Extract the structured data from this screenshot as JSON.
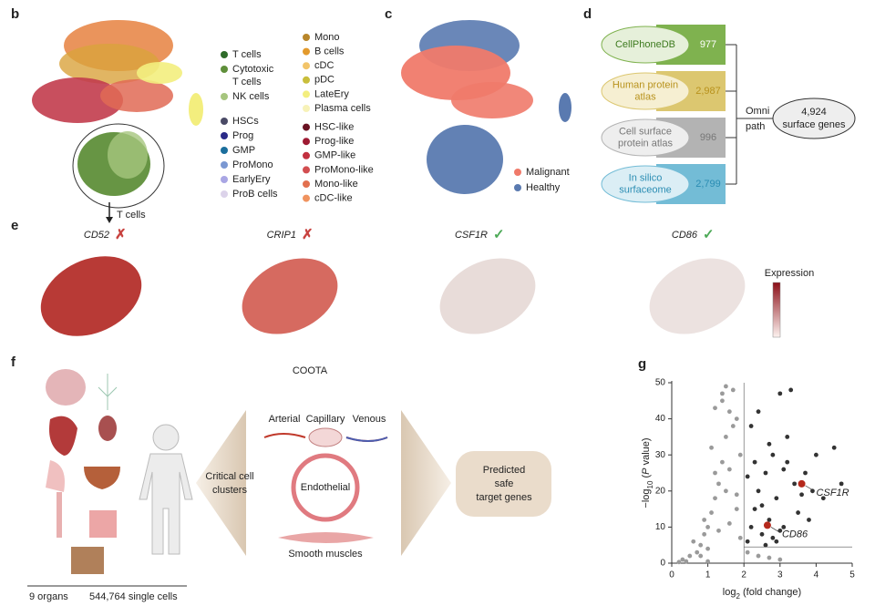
{
  "panel_labels": [
    "b",
    "c",
    "d",
    "e",
    "f",
    "g"
  ],
  "panel_b": {
    "arrow_label": "T cells",
    "legend_left": [
      {
        "label": [
          "T cells"
        ],
        "color": "#2f6b2a"
      },
      {
        "label": [
          "Cytotoxic",
          "T cells"
        ],
        "color": "#5f8f3a"
      },
      {
        "label": [
          "NK cells"
        ],
        "color": "#a6c57e"
      },
      {
        "label": [
          "HSCs"
        ],
        "color": "#4a4a66"
      },
      {
        "label": [
          "Prog"
        ],
        "color": "#2a2a88"
      },
      {
        "label": [
          "GMP"
        ],
        "color": "#1b6e9c"
      },
      {
        "label": [
          "ProMono"
        ],
        "color": "#7b98d2"
      },
      {
        "label": [
          "EarlyEry"
        ],
        "color": "#a9a6e4"
      },
      {
        "label": [
          "ProB cells"
        ],
        "color": "#dcd3ea"
      }
    ],
    "legend_right": [
      {
        "label": [
          "Mono"
        ],
        "color": "#b8862a"
      },
      {
        "label": [
          "B cells"
        ],
        "color": "#e39a2c"
      },
      {
        "label": [
          "cDC"
        ],
        "color": "#f2c469"
      },
      {
        "label": [
          "pDC"
        ],
        "color": "#c9be3c"
      },
      {
        "label": [
          "LateEry"
        ],
        "color": "#f3ee7e"
      },
      {
        "label": [
          "Plasma cells"
        ],
        "color": "#f7f2b8"
      },
      {
        "label": [
          "HSC-like"
        ],
        "color": "#6a1222"
      },
      {
        "label": [
          "Prog-like"
        ],
        "color": "#9e1a32"
      },
      {
        "label": [
          "GMP-like"
        ],
        "color": "#c2303f"
      },
      {
        "label": [
          "ProMono-like"
        ],
        "color": "#d24e50"
      },
      {
        "label": [
          "Mono-like"
        ],
        "color": "#e2704f"
      },
      {
        "label": [
          "cDC-like"
        ],
        "color": "#f0935f"
      }
    ]
  },
  "panel_c": {
    "legend": [
      {
        "label": "Malignant",
        "color": "#f07a6a"
      },
      {
        "label": "Healthy",
        "color": "#5a7ab0"
      }
    ]
  },
  "panel_d": {
    "databases": [
      {
        "name": [
          "CellPhoneDB"
        ],
        "count": "977",
        "color": "#7fb24f",
        "text_color": "#3d7a1e",
        "light": "#e6f0da"
      },
      {
        "name": [
          "Human protein",
          "atlas"
        ],
        "count": "2,987",
        "color": "#dcc770",
        "text_color": "#b8921c",
        "light": "#f6efd2"
      },
      {
        "name": [
          "Cell surface",
          "protein atlas"
        ],
        "count": "996",
        "color": "#b3b3b3",
        "text_color": "#777777",
        "light": "#eeeeee"
      },
      {
        "name": [
          "In silico",
          "surfaceome"
        ],
        "count": "2,799",
        "color": "#73bcd6",
        "text_color": "#2b8db3",
        "light": "#dbeef5"
      }
    ],
    "merge_label": [
      "Omni",
      "path"
    ],
    "result": [
      "4,924",
      "surface genes"
    ]
  },
  "panel_e": {
    "genes": [
      {
        "name": "CD52",
        "verdict": "✗",
        "verdict_color": "#c8423f",
        "level": 0.85
      },
      {
        "name": "CRIP1",
        "verdict": "✗",
        "verdict_color": "#c8423f",
        "level": 0.6
      },
      {
        "name": "CSF1R",
        "verdict": "✓",
        "verdict_color": "#4daa57",
        "level": 0.2
      },
      {
        "name": "CD86",
        "verdict": "✓",
        "verdict_color": "#4daa57",
        "level": 0.15
      }
    ],
    "colorbar_label": "Expression"
  },
  "panel_f": {
    "title": "COOTA",
    "vessel_labels": [
      "Arterial",
      "Capillary",
      "Venous"
    ],
    "endothelial": "Endothelial",
    "smooth": "Smooth muscles",
    "left_arrow": [
      "Critical cell",
      "clusters"
    ],
    "right_arrow": [
      "Predicted",
      "safe",
      "target genes"
    ],
    "footer": [
      "9 organs",
      "544,764 single cells"
    ]
  },
  "chart_data": {
    "type": "scatter",
    "x_label": [
      "log",
      "2",
      " (fold change)"
    ],
    "y_label": [
      "−log",
      "10",
      " (",
      "P",
      " value)"
    ],
    "xlim": [
      0,
      5
    ],
    "ylim": [
      0,
      50
    ],
    "xticks": [
      0,
      1,
      2,
      3,
      4,
      5
    ],
    "yticks": [
      0,
      10,
      20,
      30,
      40,
      50
    ],
    "x_threshold": 2,
    "y_threshold": 4.5,
    "series": [
      {
        "color": "#9a9a9a",
        "x": [
          0.3,
          0.5,
          0.7,
          0.8,
          0.9,
          1.0,
          1.1,
          1.2,
          1.3,
          1.4,
          1.5,
          1.6,
          1.7,
          1.8,
          1.9,
          0.6,
          0.9,
          1.2,
          1.5,
          1.8,
          1.0,
          1.3,
          1.6,
          1.9,
          1.1,
          1.4,
          1.7,
          0.8,
          1.5,
          1.4,
          1.2,
          1.6,
          1.8,
          2.1,
          2.4,
          2.7,
          3.0,
          1.0,
          0.4,
          0.2
        ],
        "values": [
          1,
          2,
          3,
          5,
          8,
          10,
          14,
          18,
          22,
          28,
          35,
          42,
          48,
          40,
          30,
          6,
          12,
          25,
          20,
          15,
          4,
          9,
          11,
          7,
          32,
          45,
          38,
          2,
          49,
          47,
          43,
          26,
          19,
          3,
          2,
          1.5,
          1,
          0.5,
          0.5,
          0.3
        ]
      },
      {
        "color": "#333333",
        "x": [
          2.1,
          2.2,
          2.3,
          2.4,
          2.5,
          2.6,
          2.7,
          2.8,
          2.9,
          3.0,
          3.1,
          3.2,
          3.3,
          3.4,
          3.5,
          3.7,
          3.9,
          4.0,
          4.2,
          4.5,
          4.7,
          2.2,
          2.4,
          2.6,
          2.8,
          3.0,
          3.2,
          2.3,
          2.5,
          3.8,
          2.1,
          2.9,
          3.6,
          2.7,
          3.1
        ],
        "values": [
          6,
          10,
          15,
          20,
          8,
          25,
          12,
          30,
          18,
          47,
          10,
          28,
          48,
          22,
          14,
          25,
          20,
          30,
          18,
          32,
          22,
          38,
          42,
          5,
          7,
          9,
          35,
          28,
          16,
          12,
          24,
          6,
          19,
          33,
          26
        ]
      }
    ],
    "highlights": [
      {
        "label": "CSF1R",
        "x": 3.6,
        "y": 22,
        "color": "#b5291c"
      },
      {
        "label": "CD86",
        "x": 2.65,
        "y": 10.5,
        "color": "#b5291c"
      }
    ]
  }
}
